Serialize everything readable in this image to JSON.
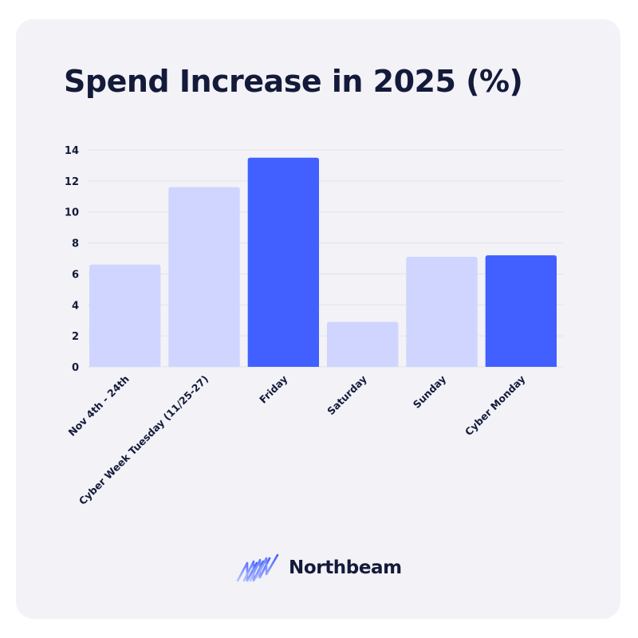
{
  "chart_data": {
    "type": "bar",
    "title": "Spend Increase in 2025 (%)",
    "xlabel": "",
    "ylabel": "",
    "categories": [
      "Nov 4th - 24th",
      "Cyber Week Tuesday (11/25-27)",
      "Friday",
      "Saturday",
      "Sunday",
      "Cyber Monday"
    ],
    "values": [
      6.6,
      11.6,
      13.5,
      2.9,
      7.1,
      7.2
    ],
    "highlighted": [
      false,
      false,
      true,
      false,
      false,
      true
    ],
    "ylim": [
      0,
      14
    ],
    "yticks": [
      "0",
      "2",
      "4",
      "6",
      "8",
      "10",
      "12",
      "14"
    ],
    "grid": true,
    "legend": "none",
    "colors": {
      "bar": "#cfd5fe",
      "bar_highlight": "#4160ff",
      "grid": "#e1e1ea",
      "text": "#141a3a"
    }
  },
  "brand": {
    "name": "Northbeam",
    "logo_icon": "northbeam-logo-icon"
  }
}
